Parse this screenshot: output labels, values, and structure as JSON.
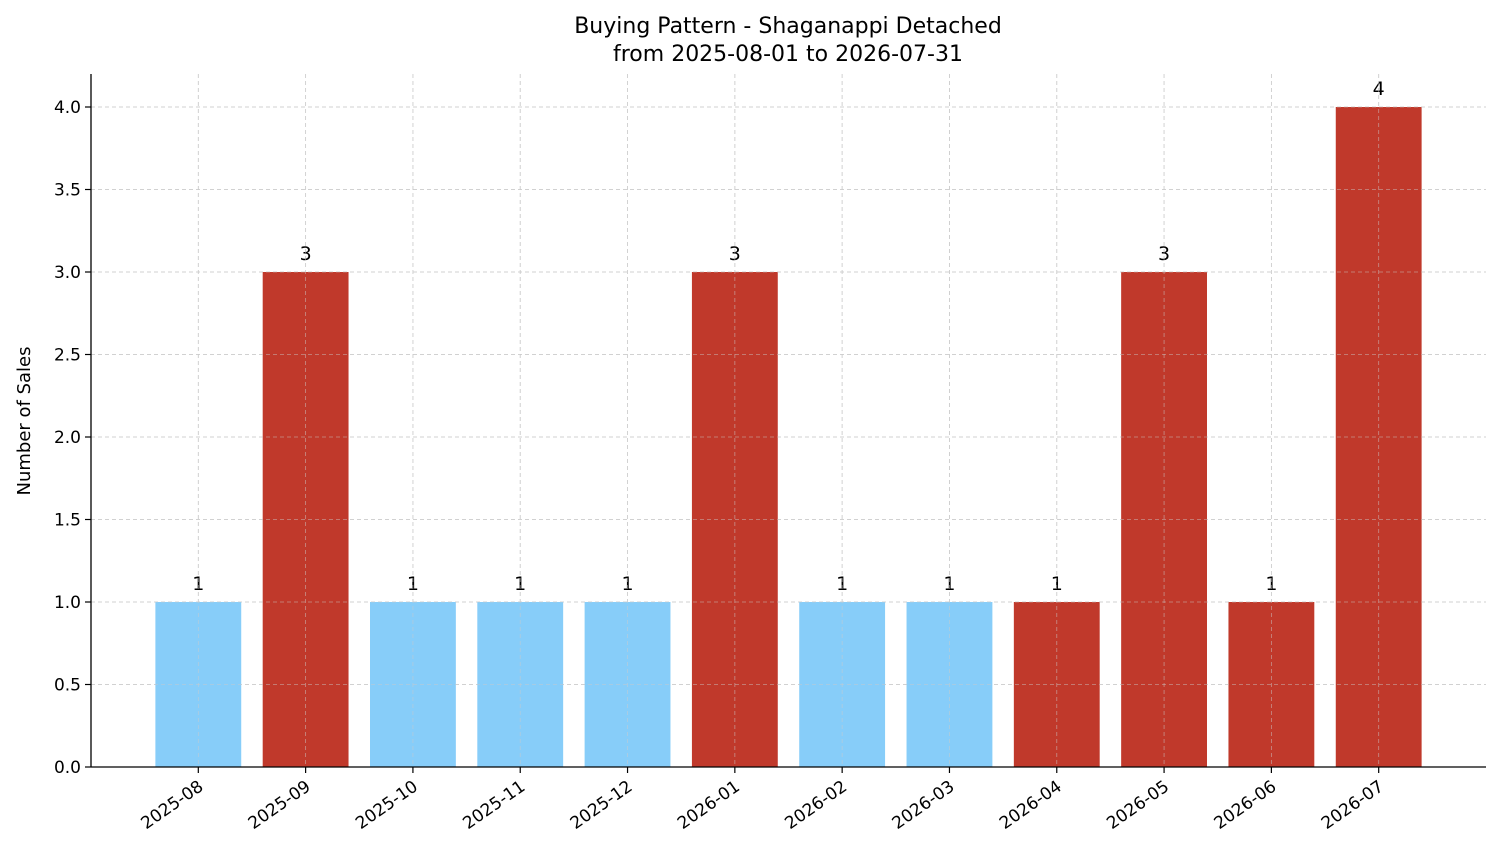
{
  "chart_data": {
    "type": "bar",
    "title": "Buying Pattern - Shaganappi Detached",
    "subtitle": "from 2025-08-01 to 2026-07-31",
    "xlabel": "",
    "ylabel": "Number of Sales",
    "categories": [
      "2025-08",
      "2025-09",
      "2025-10",
      "2025-11",
      "2025-12",
      "2026-01",
      "2026-02",
      "2026-03",
      "2026-04",
      "2026-05",
      "2026-06",
      "2026-07"
    ],
    "values": [
      1,
      3,
      1,
      1,
      1,
      3,
      1,
      1,
      1,
      3,
      1,
      4
    ],
    "bar_colors": [
      "#87cdf9",
      "#c0392b",
      "#87cdf9",
      "#87cdf9",
      "#87cdf9",
      "#c0392b",
      "#87cdf9",
      "#87cdf9",
      "#c0392b",
      "#c0392b",
      "#c0392b",
      "#c0392b"
    ],
    "ylim": [
      0,
      4.2
    ],
    "yticks": [
      "0.0",
      "0.5",
      "1.0",
      "1.5",
      "2.0",
      "2.5",
      "3.0",
      "3.5",
      "4.0"
    ],
    "grid": true,
    "legend": "none"
  }
}
